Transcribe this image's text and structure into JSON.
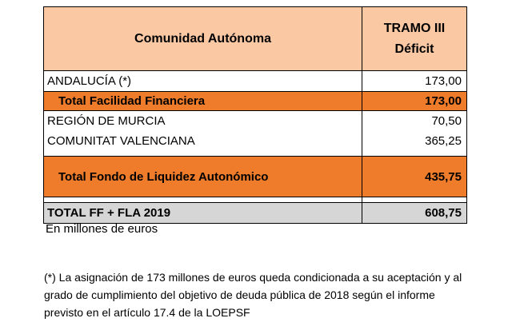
{
  "header": {
    "col1": "Comunidad Autónoma",
    "col2_line1": "TRAMO III",
    "col2_line2": "Déficit"
  },
  "rows": [
    {
      "label": "ANDALUCÍA (*)",
      "value": "173,00"
    },
    {
      "label": "Total Facilidad Financiera",
      "value": "173,00"
    },
    {
      "label": "REGIÓN DE MURCIA",
      "value": "70,50"
    },
    {
      "label": "COMUNITAT VALENCIANA",
      "value": "365,25"
    },
    {
      "label": "Total Fondo de Liquidez Autonómico",
      "value": "435,75"
    },
    {
      "label": "TOTAL FF + FLA 2019",
      "value": "608,75"
    }
  ],
  "units_note": "En millones de euros",
  "footnote": "(*) La asignación de 173 millones de euros queda condicionada a su aceptación y al grado de cumplimiento del objetivo de deuda pública de 2018 según el informe previsto en el artículo 17.4 de la LOEPSF",
  "colors": {
    "header_bg": "#fbc8a4",
    "subtotal_bg": "#ee7c2a",
    "total_bg": "#d6d6d6"
  }
}
